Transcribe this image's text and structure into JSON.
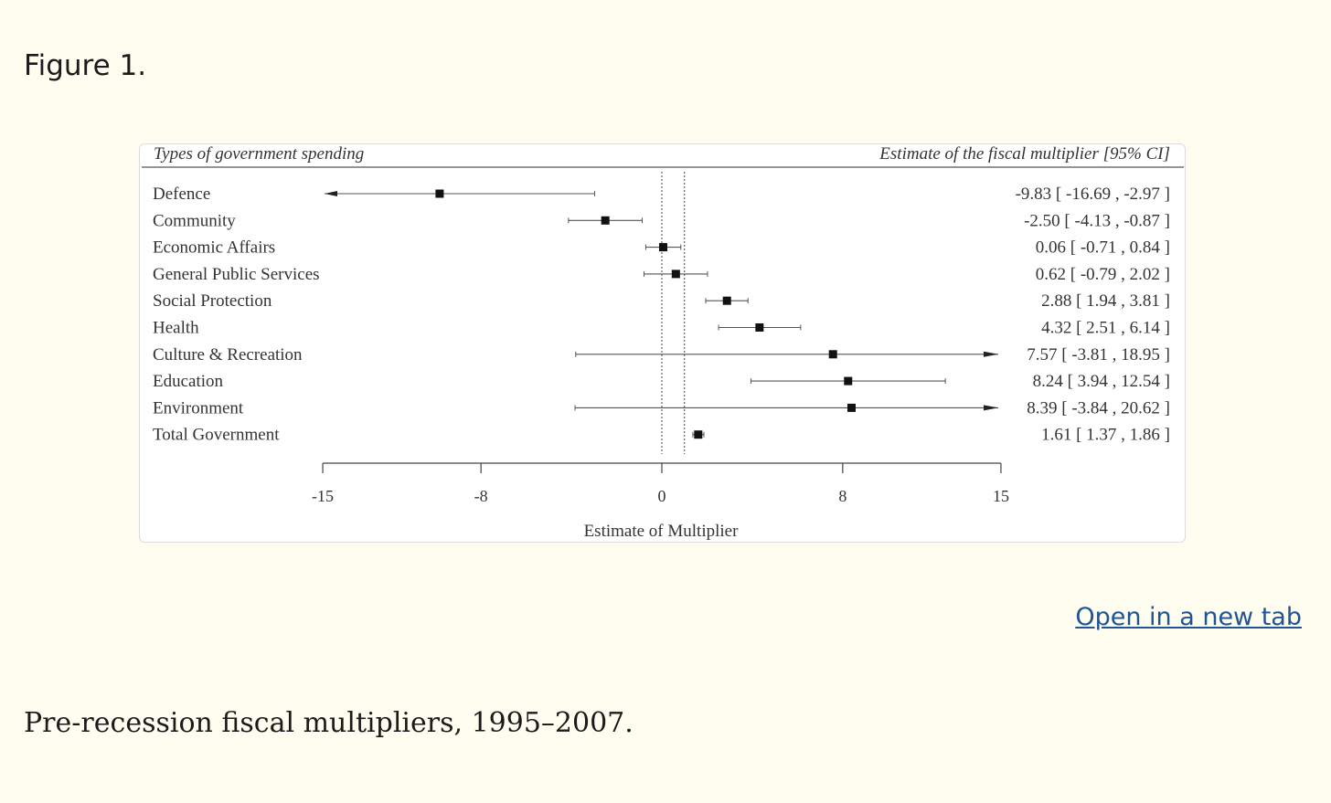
{
  "figure": {
    "label": "Figure 1.",
    "caption": "Pre-recession fiscal multipliers, 1995–2007.",
    "open_link": "Open in a new tab"
  },
  "chart_data": {
    "type": "forest",
    "left_header": "Types of government spending",
    "right_header": "Estimate of the fiscal multiplier [95% CI]",
    "xlabel": "Estimate of Multiplier",
    "xlim": [
      -15,
      15
    ],
    "xticks": [
      -15,
      -8,
      0,
      8,
      15
    ],
    "reference_lines": [
      0,
      1
    ],
    "rows": [
      {
        "label": "Defence",
        "estimate": -9.83,
        "lower": -16.69,
        "upper": -2.97,
        "ci_text": "-9.83 [ -16.69 , -2.97 ]",
        "arrow_left": true,
        "arrow_right": false
      },
      {
        "label": "Community",
        "estimate": -2.5,
        "lower": -4.13,
        "upper": -0.87,
        "ci_text": "-2.50 [ -4.13 , -0.87 ]",
        "arrow_left": false,
        "arrow_right": false
      },
      {
        "label": "Economic Affairs",
        "estimate": 0.06,
        "lower": -0.71,
        "upper": 0.84,
        "ci_text": "0.06 [ -0.71 , 0.84 ]",
        "arrow_left": false,
        "arrow_right": false
      },
      {
        "label": "General Public Services",
        "estimate": 0.62,
        "lower": -0.79,
        "upper": 2.02,
        "ci_text": "0.62 [ -0.79 , 2.02 ]",
        "arrow_left": false,
        "arrow_right": false
      },
      {
        "label": "Social Protection",
        "estimate": 2.88,
        "lower": 1.94,
        "upper": 3.81,
        "ci_text": "2.88 [ 1.94 , 3.81 ]",
        "arrow_left": false,
        "arrow_right": false
      },
      {
        "label": "Health",
        "estimate": 4.32,
        "lower": 2.51,
        "upper": 6.14,
        "ci_text": "4.32 [ 2.51 , 6.14 ]",
        "arrow_left": false,
        "arrow_right": false
      },
      {
        "label": "Culture & Recreation",
        "estimate": 7.57,
        "lower": -3.81,
        "upper": 18.95,
        "ci_text": "7.57 [ -3.81 , 18.95 ]",
        "arrow_left": false,
        "arrow_right": true
      },
      {
        "label": "Education",
        "estimate": 8.24,
        "lower": 3.94,
        "upper": 12.54,
        "ci_text": "8.24 [ 3.94 , 12.54 ]",
        "arrow_left": false,
        "arrow_right": false
      },
      {
        "label": "Environment",
        "estimate": 8.39,
        "lower": -3.84,
        "upper": 20.62,
        "ci_text": "8.39 [ -3.84 , 20.62 ]",
        "arrow_left": false,
        "arrow_right": true
      },
      {
        "label": "Total Government",
        "estimate": 1.61,
        "lower": 1.37,
        "upper": 1.86,
        "ci_text": "1.61 [ 1.37 , 1.86 ]",
        "arrow_left": false,
        "arrow_right": false
      }
    ]
  }
}
